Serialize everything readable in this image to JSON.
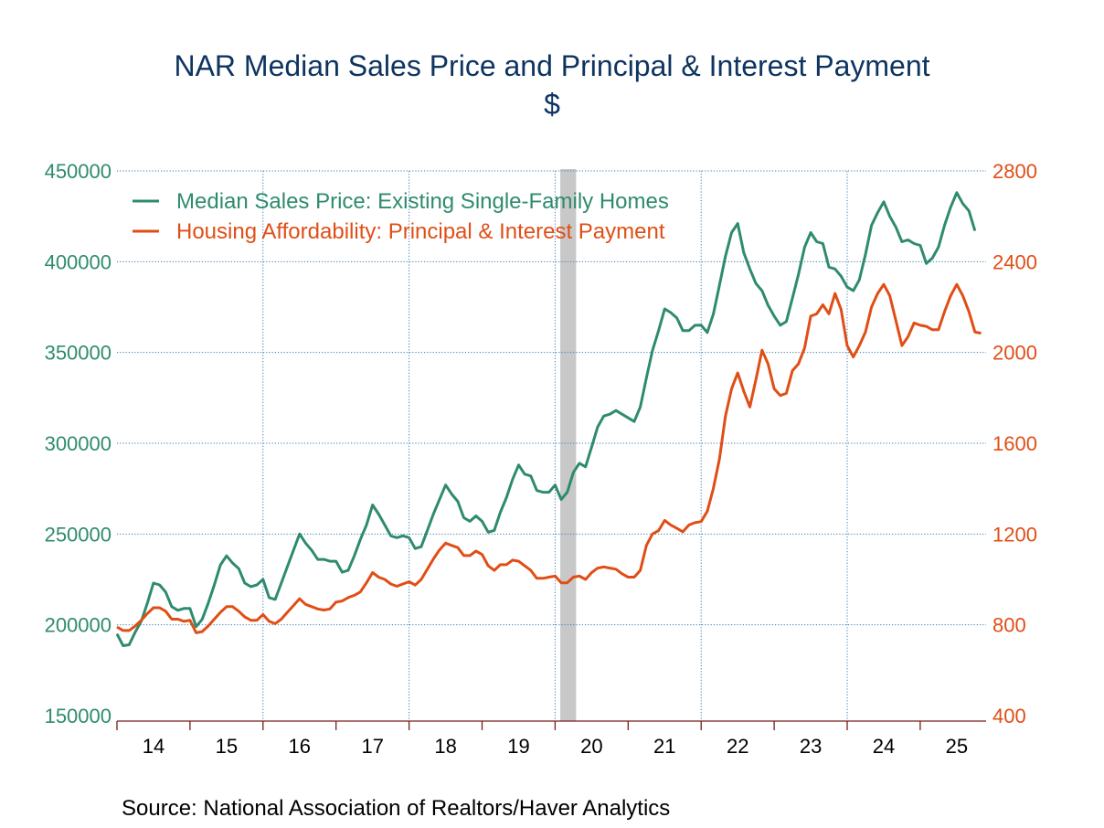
{
  "chart_data": {
    "type": "line",
    "title": "NAR Median Sales Price and Principal & Interest Payment",
    "subtitle": "$",
    "source": "Source:  National Association of Realtors/Haver Analytics",
    "x_start": "2014-01",
    "frequency": "monthly",
    "xtick_labels": [
      "14",
      "15",
      "16",
      "17",
      "18",
      "19",
      "20",
      "21",
      "22",
      "23",
      "24",
      "25"
    ],
    "left_axis": {
      "ylim": [
        150000,
        450000
      ],
      "ticks": [
        150000,
        200000,
        250000,
        300000,
        350000,
        400000,
        450000
      ],
      "tick_labels": [
        "150000",
        "200000",
        "250000",
        "300000",
        "350000",
        "400000",
        "450000"
      ],
      "color": "#2e8b6e"
    },
    "right_axis": {
      "ylim": [
        400,
        2800
      ],
      "ticks": [
        400,
        800,
        1200,
        1600,
        2000,
        2400,
        2800
      ],
      "tick_labels": [
        "400",
        "800",
        "1200",
        "1600",
        "2000",
        "2400",
        "2800"
      ],
      "color": "#e04e16"
    },
    "grid": true,
    "legend_position": "top-left",
    "recession_shading": {
      "start": "2020-02",
      "end": "2020-04",
      "color": "#c8c8c8"
    },
    "series": [
      {
        "name": "Median Sales Price: Existing Single-Family Homes",
        "axis": "left",
        "color": "#2e8b6e",
        "values": [
          195000,
          188500,
          189000,
          196000,
          202000,
          212000,
          223000,
          222000,
          218000,
          210000,
          208000,
          209000,
          209000,
          199000,
          203000,
          212000,
          222000,
          233000,
          238000,
          234000,
          231000,
          223000,
          221000,
          222000,
          225000,
          215000,
          214000,
          223000,
          232000,
          241000,
          250000,
          245000,
          241000,
          236000,
          236000,
          235000,
          235000,
          229000,
          230000,
          238000,
          247000,
          255000,
          266000,
          261000,
          255000,
          249000,
          248000,
          249000,
          248000,
          242000,
          243000,
          252000,
          261000,
          269000,
          277000,
          272000,
          268000,
          259000,
          257000,
          260000,
          257000,
          251000,
          252000,
          262000,
          270000,
          280000,
          288000,
          283000,
          282000,
          274000,
          273000,
          273000,
          277000,
          269000,
          273000,
          284000,
          289000,
          287000,
          298000,
          309000,
          315000,
          316000,
          318000,
          316000,
          314000,
          312000,
          320000,
          336000,
          351000,
          362000,
          374000,
          372000,
          369000,
          362000,
          362000,
          365000,
          365000,
          361000,
          371000,
          387000,
          403000,
          416000,
          421000,
          405000,
          396000,
          388000,
          384000,
          376000,
          370000,
          365000,
          367000,
          380000,
          393000,
          408000,
          416000,
          411000,
          410000,
          397000,
          396000,
          392000,
          386000,
          384000,
          390000,
          404000,
          420000,
          427000,
          433000,
          425000,
          419000,
          411000,
          412000,
          410000,
          409000,
          399000,
          402000,
          408000,
          420000,
          430000,
          438000,
          432000,
          428000,
          417000
        ]
      },
      {
        "name": "Housing Affordability: Principal & Interest Payment",
        "axis": "right",
        "color": "#e04e16",
        "values": [
          790,
          775,
          775,
          795,
          820,
          850,
          875,
          875,
          860,
          825,
          825,
          815,
          820,
          765,
          770,
          795,
          825,
          855,
          880,
          880,
          860,
          835,
          820,
          820,
          845,
          815,
          805,
          825,
          855,
          885,
          915,
          890,
          880,
          870,
          865,
          870,
          900,
          905,
          920,
          930,
          945,
          985,
          1030,
          1010,
          1000,
          980,
          970,
          980,
          990,
          975,
          1000,
          1045,
          1090,
          1130,
          1160,
          1150,
          1140,
          1105,
          1105,
          1125,
          1110,
          1060,
          1040,
          1065,
          1065,
          1085,
          1080,
          1060,
          1040,
          1005,
          1005,
          1010,
          1015,
          985,
          985,
          1010,
          1015,
          1000,
          1030,
          1050,
          1055,
          1050,
          1045,
          1025,
          1010,
          1010,
          1040,
          1150,
          1200,
          1215,
          1260,
          1240,
          1225,
          1210,
          1240,
          1250,
          1255,
          1300,
          1400,
          1530,
          1720,
          1840,
          1910,
          1830,
          1760,
          1880,
          2010,
          1950,
          1840,
          1810,
          1820,
          1920,
          1950,
          2020,
          2160,
          2170,
          2210,
          2170,
          2260,
          2190,
          2030,
          1980,
          2030,
          2090,
          2200,
          2260,
          2300,
          2250,
          2140,
          2030,
          2070,
          2130,
          2120,
          2115,
          2100,
          2100,
          2180,
          2250,
          2300,
          2250,
          2180,
          2090,
          2085
        ]
      }
    ]
  }
}
